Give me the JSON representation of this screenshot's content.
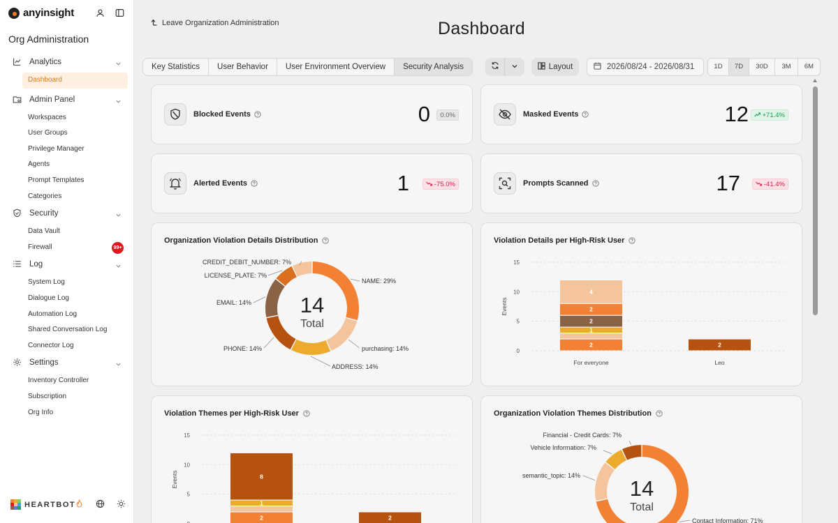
{
  "brand": {
    "name": "anyinsight"
  },
  "sidebar": {
    "org_title": "Org Administration",
    "groups": [
      {
        "label": "Analytics",
        "icon": "chart-line-icon",
        "items": [
          "Dashboard"
        ]
      },
      {
        "label": "Admin Panel",
        "icon": "folder-settings-icon",
        "items": [
          "Workspaces",
          "User Groups",
          "Privilege Manager",
          "Agents",
          "Prompt Templates",
          "Categories"
        ]
      },
      {
        "label": "Security",
        "icon": "shield-icon",
        "items": [
          "Data Vault",
          "Firewall"
        ]
      },
      {
        "label": "Log",
        "icon": "list-icon",
        "items": [
          "System Log",
          "Dialogue Log",
          "Automation Log",
          "Shared Conversation Log",
          "Connector Log"
        ]
      },
      {
        "label": "Settings",
        "icon": "gear-icon",
        "items": [
          "Inventory Controller",
          "Subscription",
          "Org Info"
        ]
      }
    ],
    "active_item": "Dashboard",
    "firewall_badge": "99+",
    "footer_brand": "HEARTBOT"
  },
  "header": {
    "leave_label": "Leave Organization Administration",
    "title": "Dashboard"
  },
  "tabs": [
    "Key Statistics",
    "User Behavior",
    "User Environment Overview",
    "Security Analysis"
  ],
  "selected_tab": "Security Analysis",
  "toolbar": {
    "layout_label": "Layout",
    "date_range": "2026/08/24 - 2026/08/31",
    "ranges": [
      "1D",
      "7D",
      "30D",
      "3M",
      "6M"
    ],
    "selected_range": "7D"
  },
  "stats": {
    "blocked": {
      "label": "Blocked Events",
      "value": "0",
      "delta": "0.0%",
      "trend": "neutral"
    },
    "masked": {
      "label": "Masked Events",
      "value": "12",
      "delta": "+71.4%",
      "trend": "up"
    },
    "alerted": {
      "label": "Alerted Events",
      "value": "1",
      "delta": "-75.0%",
      "trend": "down"
    },
    "scanned": {
      "label": "Prompts Scanned",
      "value": "17",
      "delta": "-41.4%",
      "trend": "down"
    }
  },
  "colors": {
    "c1": "#f28133",
    "c2": "#f4c59c",
    "c3": "#b5520f",
    "c4": "#ecaa2f",
    "c5": "#8a6246",
    "c6": "#fde2c5"
  },
  "chart_data": [
    {
      "type": "pie",
      "title": "Organization Violation Details Distribution",
      "center_value": "14",
      "center_label": "Total",
      "slices": [
        {
          "label": "NAME: 29%",
          "value": 29,
          "color": "#f28133"
        },
        {
          "label": "purchasing: 14%",
          "value": 14,
          "color": "#f4c59c"
        },
        {
          "label": "ADDRESS: 14%",
          "value": 14,
          "color": "#ecaa2f"
        },
        {
          "label": "PHONE: 14%",
          "value": 14,
          "color": "#b5520f"
        },
        {
          "label": "EMAIL: 14%",
          "value": 14,
          "color": "#8a6246"
        },
        {
          "label": "LICENSE_PLATE: 7%",
          "value": 7,
          "color": "#d96f1f"
        },
        {
          "label": "CREDIT_DEBIT_NUMBER: 7%",
          "value": 7,
          "color": "#f4c59c"
        }
      ]
    },
    {
      "type": "bar",
      "title": "Violation Details per High-Risk User",
      "ylabel": "Events",
      "ylim": [
        0,
        15
      ],
      "yticks": [
        0,
        5,
        10,
        15
      ],
      "categories": [
        "For everyone",
        "Leo"
      ],
      "stacks": [
        [
          {
            "value": 2,
            "label": "2",
            "color": "#f28133"
          },
          {
            "value": 1,
            "label": "",
            "color": "#f4c59c"
          },
          {
            "value": 1,
            "label": "1",
            "color": "#ecaa2f"
          },
          {
            "value": 2,
            "label": "2",
            "color": "#8a6246"
          },
          {
            "value": 2,
            "label": "2",
            "color": "#f28133"
          },
          {
            "value": 4,
            "label": "4",
            "color": "#f4c59c"
          }
        ],
        [
          {
            "value": 2,
            "label": "2",
            "color": "#b5520f"
          }
        ]
      ]
    },
    {
      "type": "bar",
      "title": "Violation Themes per High-Risk User",
      "ylabel": "Events",
      "ylim": [
        0,
        15
      ],
      "yticks": [
        0,
        5,
        10,
        15
      ],
      "stacks": [
        [
          {
            "value": 2,
            "label": "2",
            "color": "#f28133"
          },
          {
            "value": 1,
            "label": "",
            "color": "#f4c59c"
          },
          {
            "value": 1,
            "label": "1",
            "color": "#ecaa2f"
          },
          {
            "value": 8,
            "label": "8",
            "color": "#b5520f"
          }
        ],
        [
          {
            "value": 2,
            "label": "2",
            "color": "#b5520f"
          }
        ]
      ]
    },
    {
      "type": "pie",
      "title": "Organization Violation Themes Distribution",
      "center_value": "14",
      "center_label": "Total",
      "slices": [
        {
          "label": "Contact Information: 71%",
          "value": 71,
          "color": "#f28133"
        },
        {
          "label": "semantic_topic: 14%",
          "value": 14,
          "color": "#f4c59c"
        },
        {
          "label": "Vehicle Information: 7%",
          "value": 7,
          "color": "#ecaa2f"
        },
        {
          "label": "Financial - Credit Cards: 7%",
          "value": 7,
          "color": "#b5520f"
        }
      ]
    }
  ]
}
